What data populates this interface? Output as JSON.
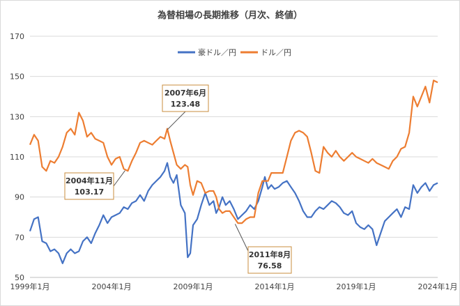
{
  "chart_data": {
    "type": "line",
    "title": "為替相場の長期推移（月次、終値）",
    "xlabel": "",
    "ylabel": "",
    "x_ticks": [
      "1999年1月",
      "2004年1月",
      "2009年1月",
      "2014年1月",
      "2019年1月",
      "2024年1月"
    ],
    "x_range": [
      1999.0,
      2024.0
    ],
    "ylim": [
      50,
      170
    ],
    "y_ticks": [
      50,
      70,
      90,
      110,
      130,
      150,
      170
    ],
    "grid": "horizontal",
    "legend_position": "top-center",
    "series": [
      {
        "name": "豪ドル／円",
        "color": "#4472c4",
        "x": [
          1999.0,
          1999.25,
          1999.5,
          1999.75,
          2000.0,
          2000.25,
          2000.5,
          2000.75,
          2001.0,
          2001.25,
          2001.5,
          2001.75,
          2002.0,
          2002.25,
          2002.5,
          2002.75,
          2003.0,
          2003.25,
          2003.5,
          2003.75,
          2004.0,
          2004.25,
          2004.5,
          2004.75,
          2005.0,
          2005.25,
          2005.5,
          2005.75,
          2006.0,
          2006.25,
          2006.5,
          2006.75,
          2007.0,
          2007.25,
          2007.42,
          2007.6,
          2007.8,
          2008.0,
          2008.25,
          2008.5,
          2008.67,
          2008.83,
          2009.0,
          2009.25,
          2009.5,
          2009.75,
          2010.0,
          2010.25,
          2010.42,
          2010.6,
          2010.8,
          2011.0,
          2011.25,
          2011.5,
          2011.75,
          2012.0,
          2012.25,
          2012.5,
          2012.75,
          2013.0,
          2013.25,
          2013.4,
          2013.6,
          2013.8,
          2014.0,
          2014.25,
          2014.5,
          2014.75,
          2015.0,
          2015.25,
          2015.5,
          2015.75,
          2016.0,
          2016.25,
          2016.5,
          2016.75,
          2017.0,
          2017.25,
          2017.5,
          2017.75,
          2018.0,
          2018.25,
          2018.5,
          2018.75,
          2019.0,
          2019.25,
          2019.5,
          2019.75,
          2020.0,
          2020.25,
          2020.5,
          2020.75,
          2021.0,
          2021.25,
          2021.5,
          2021.75,
          2022.0,
          2022.25,
          2022.5,
          2022.75,
          2023.0,
          2023.25,
          2023.5,
          2023.75,
          2024.0
        ],
        "values": [
          73,
          79,
          80,
          68,
          67,
          63,
          64,
          62,
          57,
          62,
          64,
          62,
          63,
          68,
          70,
          67,
          72,
          76,
          81,
          77,
          80,
          81,
          82,
          85,
          84,
          87,
          88,
          91,
          88,
          93,
          96,
          98,
          100,
          103,
          107,
          100,
          97,
          101,
          86,
          82,
          60,
          62,
          76,
          79,
          86,
          92,
          86,
          88,
          82,
          85,
          90,
          86,
          88,
          84,
          79,
          81,
          83,
          86,
          84,
          88,
          95,
          100,
          94,
          96,
          94,
          95,
          97,
          98,
          95,
          92,
          88,
          83,
          80,
          80,
          83,
          85,
          84,
          86,
          88,
          87,
          85,
          82,
          81,
          83,
          77,
          75,
          74,
          76,
          74,
          66,
          72,
          78,
          80,
          82,
          84,
          80,
          85,
          84,
          96,
          92,
          95,
          97,
          93,
          96,
          97
        ]
      },
      {
        "name": "ドル／円",
        "color": "#ed7d31",
        "x": [
          1999.0,
          1999.25,
          1999.5,
          1999.75,
          2000.0,
          2000.25,
          2000.5,
          2000.75,
          2001.0,
          2001.25,
          2001.5,
          2001.75,
          2002.0,
          2002.25,
          2002.5,
          2002.75,
          2003.0,
          2003.25,
          2003.5,
          2003.75,
          2004.0,
          2004.25,
          2004.5,
          2004.75,
          2005.0,
          2005.25,
          2005.5,
          2005.75,
          2006.0,
          2006.25,
          2006.5,
          2006.75,
          2007.0,
          2007.25,
          2007.42,
          2007.6,
          2007.8,
          2008.0,
          2008.25,
          2008.5,
          2008.67,
          2008.83,
          2009.0,
          2009.25,
          2009.5,
          2009.75,
          2010.0,
          2010.25,
          2010.42,
          2010.6,
          2010.8,
          2011.0,
          2011.25,
          2011.5,
          2011.75,
          2012.0,
          2012.25,
          2012.5,
          2012.75,
          2013.0,
          2013.25,
          2013.4,
          2013.6,
          2013.8,
          2014.0,
          2014.25,
          2014.5,
          2014.75,
          2015.0,
          2015.25,
          2015.5,
          2015.75,
          2016.0,
          2016.25,
          2016.5,
          2016.75,
          2017.0,
          2017.25,
          2017.5,
          2017.75,
          2018.0,
          2018.25,
          2018.5,
          2018.75,
          2019.0,
          2019.25,
          2019.5,
          2019.75,
          2020.0,
          2020.25,
          2020.5,
          2020.75,
          2021.0,
          2021.25,
          2021.5,
          2021.75,
          2022.0,
          2022.25,
          2022.5,
          2022.75,
          2023.0,
          2023.25,
          2023.5,
          2023.75,
          2024.0
        ],
        "values": [
          116,
          121,
          118,
          105,
          103,
          108,
          107,
          110,
          115,
          122,
          124,
          121,
          132,
          128,
          120,
          122,
          119,
          118,
          117,
          110,
          106,
          109,
          110,
          104,
          103,
          108,
          112,
          117,
          118,
          117,
          116,
          118,
          120,
          119,
          124,
          118,
          112,
          106,
          104,
          106,
          105,
          96,
          91,
          98,
          97,
          92,
          93,
          93,
          90,
          84,
          82,
          83,
          83,
          80,
          77,
          77,
          79,
          80,
          80,
          92,
          98,
          98,
          98,
          102,
          102,
          102,
          102,
          110,
          118,
          122,
          123,
          122,
          120,
          112,
          103,
          102,
          115,
          112,
          110,
          113,
          110,
          108,
          110,
          112,
          110,
          109,
          108,
          107,
          109,
          107,
          106,
          105,
          104,
          108,
          110,
          114,
          115,
          122,
          140,
          135,
          140,
          145,
          137,
          148,
          147
        ]
      }
    ],
    "annotations": [
      {
        "x": 2004.83,
        "y": 103.17,
        "label": "2004年11月",
        "value": "103.17"
      },
      {
        "x": 2007.42,
        "y": 123.48,
        "label": "2007年6月",
        "value": "123.48"
      },
      {
        "x": 2011.58,
        "y": 76.58,
        "label": "2011年8月",
        "value": "76.58"
      }
    ]
  }
}
